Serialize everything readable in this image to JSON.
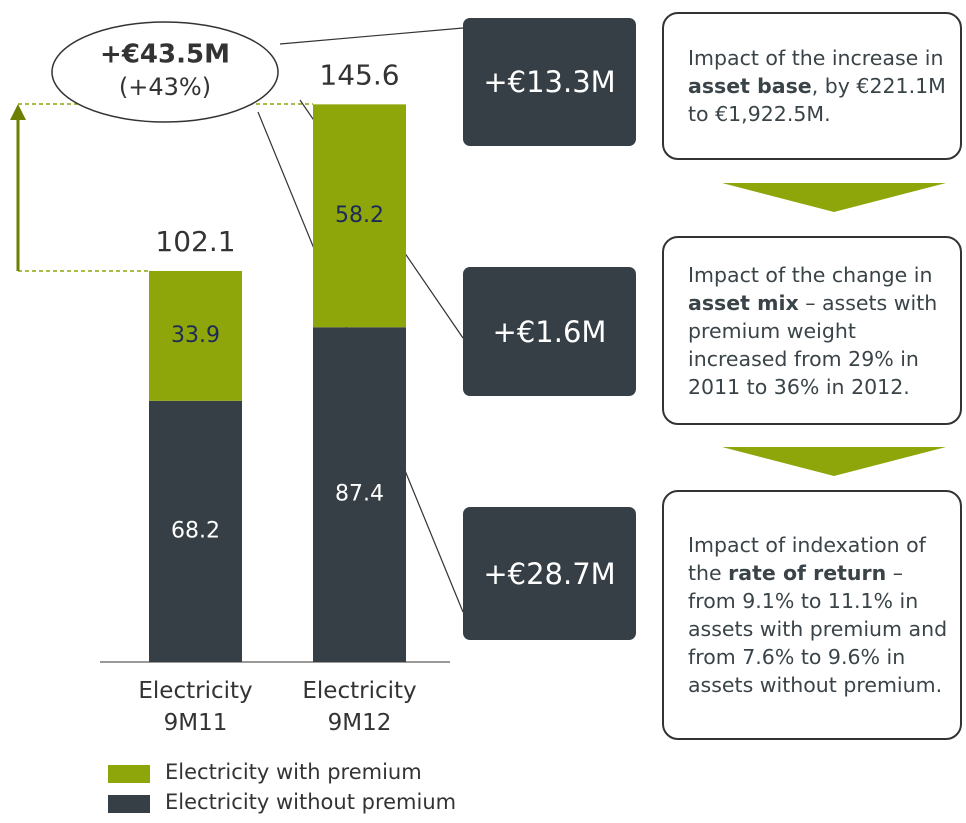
{
  "chart_data": {
    "type": "stacked_bar",
    "categories": [
      "Electricity 9M11",
      "Electricity 9M12"
    ],
    "series": [
      {
        "name": "Electricity without premium",
        "color": "#363f45",
        "label_color": "#ffffff",
        "values": [
          68.2,
          87.4
        ]
      },
      {
        "name": "Electricity with premium",
        "color": "#8ea60a",
        "label_color": "#1c2a5a",
        "values": [
          33.9,
          58.2
        ]
      }
    ],
    "totals": [
      102.1,
      145.6
    ],
    "callout": {
      "amount": "+€43.5M",
      "percent": "(+43%)"
    },
    "impacts": [
      {
        "amount": "+€13.3M",
        "text": [
          "Impact of the increase in ",
          "asset base",
          ", by €221.1M to €1,922.5M."
        ]
      },
      {
        "amount": "+€1.6M",
        "text": [
          "Impact of the change in ",
          "asset mix",
          " – assets with premium weight increased from 29% in 2011 to 36% in 2012."
        ]
      },
      {
        "amount": "+€28.7M",
        "text": [
          "Impact of indexation of the ",
          "rate of return",
          " – from 9.1% to 11.1% in assets with premium and from 7.6% to 9.6% in assets without premium."
        ]
      }
    ]
  }
}
